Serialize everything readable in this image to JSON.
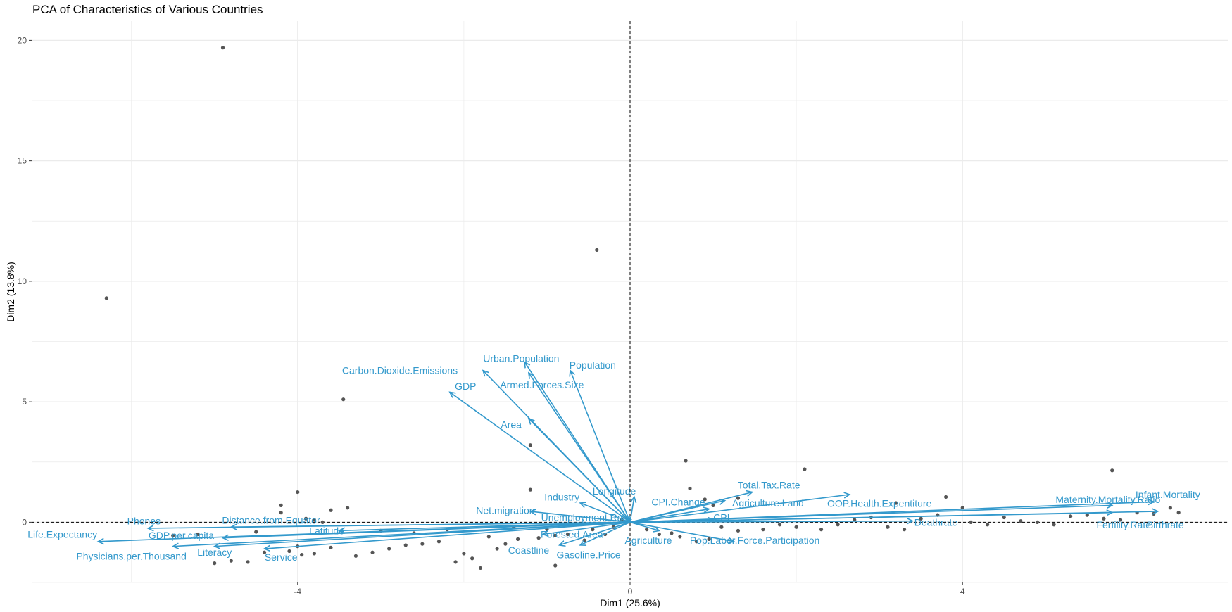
{
  "chart_data": {
    "type": "scatter",
    "title": "PCA of Characteristics of Various Countries",
    "xlabel": "Dim1 (25.6%)",
    "ylabel": "Dim2 (13.8%)",
    "xlim": [
      -7.2,
      7.2
    ],
    "ylim": [
      -2.5,
      20.8
    ],
    "x_ticks": [
      -4,
      0,
      4
    ],
    "y_ticks": [
      0,
      5,
      10,
      15,
      20
    ],
    "grid": true,
    "colors": {
      "points": "#555555",
      "arrows": "#3399cc",
      "labels": "#3399cc",
      "grid": "#ebebeb",
      "reference": "#000000"
    },
    "points": [
      [
        -4.9,
        19.7
      ],
      [
        -6.3,
        9.3
      ],
      [
        -0.4,
        11.3
      ],
      [
        -3.45,
        5.1
      ],
      [
        -1.2,
        3.2
      ],
      [
        2.1,
        2.2
      ],
      [
        5.8,
        2.15
      ],
      [
        0.67,
        2.55
      ],
      [
        0.72,
        1.4
      ],
      [
        0.9,
        0.95
      ],
      [
        1.3,
        1.0
      ],
      [
        3.2,
        0.8
      ],
      [
        3.8,
        1.05
      ],
      [
        4.0,
        0.6
      ],
      [
        1.0,
        0.7
      ],
      [
        -1.2,
        1.35
      ],
      [
        -4.0,
        1.25
      ],
      [
        -3.6,
        0.5
      ],
      [
        -3.4,
        0.6
      ],
      [
        -4.2,
        0.7
      ],
      [
        -4.2,
        0.4
      ],
      [
        -3.9,
        0.15
      ],
      [
        -3.8,
        0.1
      ],
      [
        -3.7,
        0.0
      ],
      [
        -4.6,
        -1.65
      ],
      [
        -4.8,
        -1.6
      ],
      [
        -5.0,
        -1.7
      ],
      [
        -4.4,
        -1.25
      ],
      [
        -4.1,
        -1.2
      ],
      [
        -4.0,
        -1.0
      ],
      [
        -3.95,
        -1.35
      ],
      [
        -3.8,
        -1.3
      ],
      [
        -3.6,
        -1.05
      ],
      [
        -3.3,
        -1.4
      ],
      [
        -3.1,
        -1.25
      ],
      [
        -2.9,
        -1.1
      ],
      [
        -2.7,
        -0.95
      ],
      [
        -2.5,
        -0.9
      ],
      [
        -2.3,
        -0.8
      ],
      [
        -2.0,
        -1.3
      ],
      [
        -2.1,
        -1.65
      ],
      [
        -1.9,
        -1.5
      ],
      [
        -1.8,
        -1.9
      ],
      [
        -1.6,
        -1.1
      ],
      [
        -1.5,
        -0.9
      ],
      [
        -1.35,
        -0.7
      ],
      [
        -1.1,
        -0.65
      ],
      [
        -0.9,
        -0.55
      ],
      [
        -0.75,
        -0.5
      ],
      [
        -0.55,
        -0.75
      ],
      [
        -0.9,
        -1.8
      ],
      [
        -0.45,
        -0.3
      ],
      [
        -0.2,
        -0.2
      ],
      [
        -0.1,
        0.1
      ],
      [
        0.2,
        -0.3
      ],
      [
        0.35,
        -0.5
      ],
      [
        0.5,
        -0.45
      ],
      [
        0.6,
        -0.6
      ],
      [
        0.8,
        -0.8
      ],
      [
        0.95,
        -0.7
      ],
      [
        1.1,
        -0.2
      ],
      [
        1.3,
        -0.35
      ],
      [
        1.6,
        -0.3
      ],
      [
        1.8,
        -0.1
      ],
      [
        2.0,
        -0.2
      ],
      [
        2.3,
        -0.3
      ],
      [
        2.5,
        -0.1
      ],
      [
        2.7,
        0.1
      ],
      [
        2.9,
        0.2
      ],
      [
        3.1,
        -0.2
      ],
      [
        3.3,
        -0.3
      ],
      [
        3.5,
        0.15
      ],
      [
        3.7,
        0.3
      ],
      [
        4.1,
        0.0
      ],
      [
        4.3,
        -0.1
      ],
      [
        4.5,
        0.2
      ],
      [
        4.7,
        0.05
      ],
      [
        4.9,
        0.0
      ],
      [
        5.1,
        -0.1
      ],
      [
        5.3,
        0.25
      ],
      [
        5.5,
        0.3
      ],
      [
        5.7,
        0.15
      ],
      [
        5.9,
        0.1
      ],
      [
        6.1,
        0.4
      ],
      [
        6.3,
        0.35
      ],
      [
        6.5,
        0.6
      ],
      [
        6.6,
        0.4
      ],
      [
        -5.2,
        -0.5
      ],
      [
        -5.5,
        -0.55
      ],
      [
        -4.5,
        -0.4
      ],
      [
        -3.0,
        -0.35
      ],
      [
        -2.6,
        -0.45
      ],
      [
        -2.2,
        -0.3
      ],
      [
        -1.7,
        -0.6
      ],
      [
        -1.4,
        -0.2
      ],
      [
        -1.0,
        -0.3
      ],
      [
        -0.65,
        -0.1
      ],
      [
        -0.3,
        -0.5
      ]
    ],
    "arrows": [
      {
        "label": "Carbon.Dioxide.Emissions",
        "x": -1.77,
        "y": 6.3,
        "lx": -2.77,
        "ly": 6.3
      },
      {
        "label": "Urban.Population",
        "x": -1.27,
        "y": 6.65,
        "lx": -1.31,
        "ly": 6.8
      },
      {
        "label": "Population",
        "x": -0.72,
        "y": 6.3,
        "lx": -0.45,
        "ly": 6.52
      },
      {
        "label": "Armed.Forces.Size",
        "x": -1.22,
        "y": 6.2,
        "lx": -1.06,
        "ly": 5.7
      },
      {
        "label": "GDP",
        "x": -2.17,
        "y": 5.4,
        "lx": -1.98,
        "ly": 5.65
      },
      {
        "label": "Area",
        "x": -1.22,
        "y": 4.3,
        "lx": -1.43,
        "ly": 4.05
      },
      {
        "label": "Industry",
        "x": -0.6,
        "y": 0.8,
        "lx": -0.82,
        "ly": 1.05
      },
      {
        "label": "Longitude",
        "x": 0.05,
        "y": 1.05,
        "lx": -0.19,
        "ly": 1.3
      },
      {
        "label": "Net.migration",
        "x": -1.2,
        "y": 0.45,
        "lx": -1.5,
        "ly": 0.5
      },
      {
        "label": "Unemployment.Rate",
        "x": -0.05,
        "y": 0.2,
        "lx": -0.53,
        "ly": 0.2
      },
      {
        "label": "Total.Tax.Rate",
        "x": 1.47,
        "y": 1.25,
        "lx": 1.67,
        "ly": 1.55
      },
      {
        "label": "CPI.Change",
        "x": 0.95,
        "y": 0.55,
        "lx": 0.58,
        "ly": 0.85
      },
      {
        "label": "Agriculture.Land",
        "x": 1.14,
        "y": 0.9,
        "lx": 1.66,
        "ly": 0.8
      },
      {
        "label": "OOP.Health.Expentiture",
        "x": 2.64,
        "y": 1.15,
        "lx": 3.0,
        "ly": 0.78
      },
      {
        "label": "CPI",
        "x": 1.0,
        "y": 0.1,
        "lx": 1.1,
        "ly": 0.2
      },
      {
        "label": "Maternity.Mortality.Ratio",
        "x": 5.8,
        "y": 0.7,
        "lx": 5.75,
        "ly": 0.95
      },
      {
        "label": "Infant.Mortality",
        "x": 6.3,
        "y": 0.85,
        "lx": 6.47,
        "ly": 1.15
      },
      {
        "label": "Deathrate",
        "x": 3.4,
        "y": 0.05,
        "lx": 3.68,
        "ly": 0.0
      },
      {
        "label": "Fertility.Rate",
        "x": 5.8,
        "y": 0.4,
        "lx": 5.94,
        "ly": -0.1
      },
      {
        "label": "Birthrate",
        "x": 6.35,
        "y": 0.45,
        "lx": 6.44,
        "ly": -0.1
      },
      {
        "label": "Phones",
        "x": -5.8,
        "y": -0.25,
        "lx": -5.85,
        "ly": 0.05
      },
      {
        "label": "Distance.from.Equator",
        "x": -4.8,
        "y": -0.2,
        "lx": -4.32,
        "ly": 0.08
      },
      {
        "label": "Life.Expectancy",
        "x": -6.4,
        "y": -0.8,
        "lx": -6.83,
        "ly": -0.5
      },
      {
        "label": "GDP.per.capita",
        "x": -4.9,
        "y": -0.65,
        "lx": -5.4,
        "ly": -0.55
      },
      {
        "label": "Latitude",
        "x": -3.5,
        "y": -0.35,
        "lx": -3.65,
        "ly": -0.35
      },
      {
        "label": "Physicians.per.Thousand",
        "x": -5.5,
        "y": -1.0,
        "lx": -6.0,
        "ly": -1.4
      },
      {
        "label": "Literacy",
        "x": -5.0,
        "y": -1.0,
        "lx": -5.0,
        "ly": -1.25
      },
      {
        "label": "Service",
        "x": -4.4,
        "y": -1.1,
        "lx": -4.2,
        "ly": -1.45
      },
      {
        "label": "Forested.Area",
        "x": -1.05,
        "y": -0.5,
        "lx": -0.7,
        "ly": -0.5
      },
      {
        "label": "Coastline",
        "x": -0.85,
        "y": -0.95,
        "lx": -1.22,
        "ly": -1.15
      },
      {
        "label": "Gasoline.Price",
        "x": -0.6,
        "y": -0.95,
        "lx": -0.5,
        "ly": -1.35
      },
      {
        "label": "Agriculture",
        "x": 0.35,
        "y": -0.35,
        "lx": 0.22,
        "ly": -0.75
      },
      {
        "label": "Pop.Labor.Force.Participation",
        "x": 1.25,
        "y": -0.8,
        "lx": 1.5,
        "ly": -0.75
      }
    ]
  }
}
